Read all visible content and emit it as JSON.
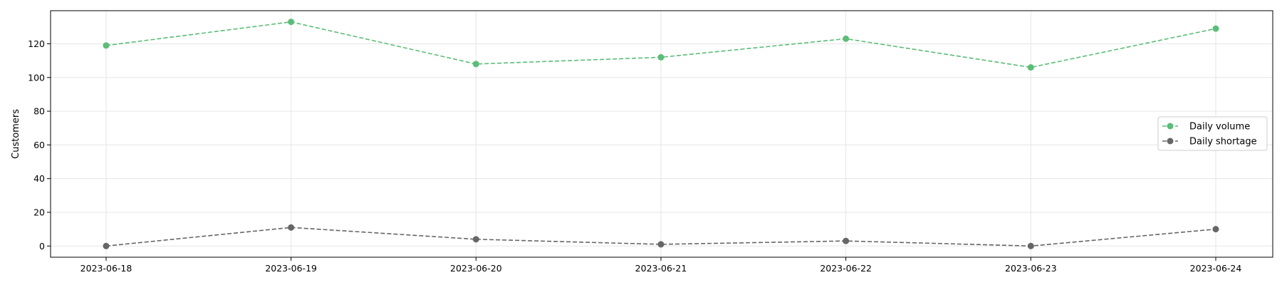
{
  "chart_data": {
    "type": "line",
    "title": "",
    "xlabel": "",
    "ylabel": "Customers",
    "categories": [
      "2023-06-18",
      "2023-06-19",
      "2023-06-20",
      "2023-06-21",
      "2023-06-22",
      "2023-06-23",
      "2023-06-24"
    ],
    "series": [
      {
        "name": "Daily volume",
        "values": [
          119,
          133,
          108,
          112,
          123,
          106,
          129
        ],
        "color": "#5bbd78",
        "line_style": "dashed",
        "marker": "circle"
      },
      {
        "name": "Daily shortage",
        "values": [
          0,
          11,
          4,
          1,
          3,
          0,
          10
        ],
        "color": "#666666",
        "line_style": "dashed",
        "marker": "circle"
      }
    ],
    "ylim": [
      -6.65,
      139.65
    ],
    "yticks": [
      0,
      20,
      40,
      60,
      80,
      100,
      120
    ],
    "grid": true,
    "legend_position": "center-right"
  }
}
